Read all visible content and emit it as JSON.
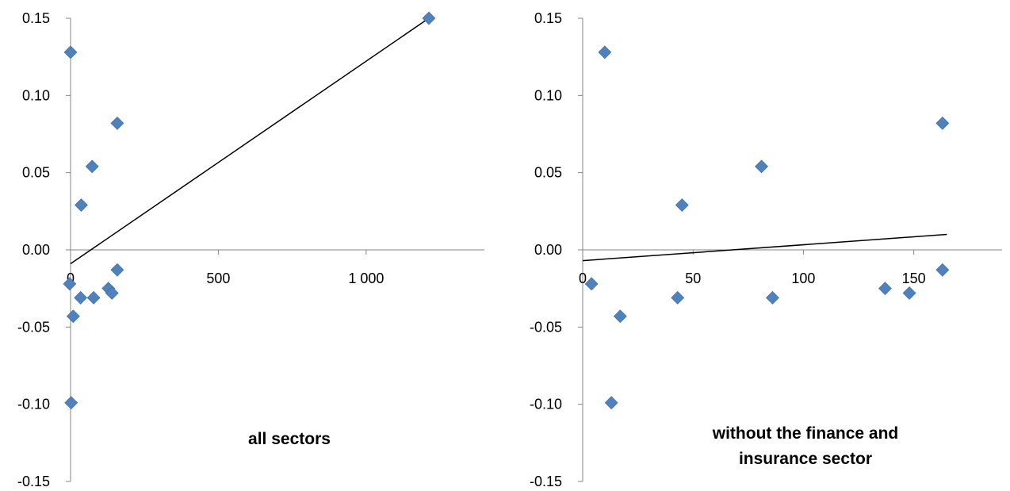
{
  "chart_data": [
    {
      "type": "scatter",
      "title": "all sectors",
      "xlabel": "",
      "ylabel": "",
      "xlim": [
        0,
        1400
      ],
      "ylim": [
        -0.15,
        0.15
      ],
      "x_ticks": [
        0,
        500,
        1000
      ],
      "x_tick_labels": [
        "0",
        "500",
        "1 000"
      ],
      "y_ticks": [
        0.15,
        0.1,
        0.05,
        0.0,
        -0.05,
        -0.1,
        -0.15
      ],
      "y_tick_labels": [
        "0.15",
        "0.10",
        "0.05",
        "0.00",
        "-0.05",
        "-0.10",
        "-0.15"
      ],
      "grid": false,
      "marker_color": "#4F81BD",
      "trendline_color": "#000000",
      "points": [
        {
          "x": 0,
          "y": 0.128
        },
        {
          "x": 1212,
          "y": 0.15
        },
        {
          "x": 158,
          "y": 0.082
        },
        {
          "x": 73,
          "y": 0.054
        },
        {
          "x": 36,
          "y": 0.029
        },
        {
          "x": 158,
          "y": -0.013
        },
        {
          "x": -3,
          "y": -0.022
        },
        {
          "x": 128,
          "y": -0.025
        },
        {
          "x": 140,
          "y": -0.028
        },
        {
          "x": 34,
          "y": -0.031
        },
        {
          "x": 78,
          "y": -0.031
        },
        {
          "x": 9,
          "y": -0.043
        },
        {
          "x": 2,
          "y": -0.099
        }
      ],
      "trendline": [
        {
          "x": 0,
          "y": -0.009
        },
        {
          "x": 1212,
          "y": 0.15
        }
      ]
    },
    {
      "type": "scatter",
      "title": "without the finance and insurance sector",
      "title_lines": [
        "without the finance and",
        "insurance sector"
      ],
      "xlabel": "",
      "ylabel": "",
      "xlim": [
        0,
        190
      ],
      "ylim": [
        -0.15,
        0.15
      ],
      "x_ticks": [
        0,
        50,
        100,
        150
      ],
      "x_tick_labels": [
        "0",
        "50",
        "100",
        "150"
      ],
      "y_ticks": [
        0.15,
        0.1,
        0.05,
        0.0,
        -0.05,
        -0.1,
        -0.15
      ],
      "y_tick_labels": [
        "0.15",
        "0.10",
        "0.05",
        "0.00",
        "-0.05",
        "-0.10",
        "-0.15"
      ],
      "grid": false,
      "marker_color": "#4F81BD",
      "trendline_color": "#000000",
      "points": [
        {
          "x": 10,
          "y": 0.128
        },
        {
          "x": 163,
          "y": 0.082
        },
        {
          "x": 81,
          "y": 0.054
        },
        {
          "x": 45,
          "y": 0.029
        },
        {
          "x": 163,
          "y": -0.013
        },
        {
          "x": 4,
          "y": -0.022
        },
        {
          "x": 137,
          "y": -0.025
        },
        {
          "x": 148,
          "y": -0.028
        },
        {
          "x": 43,
          "y": -0.031
        },
        {
          "x": 86,
          "y": -0.031
        },
        {
          "x": 17,
          "y": -0.043
        },
        {
          "x": 13,
          "y": -0.099
        }
      ],
      "trendline": [
        {
          "x": 0,
          "y": -0.007
        },
        {
          "x": 165,
          "y": 0.01
        }
      ]
    }
  ]
}
